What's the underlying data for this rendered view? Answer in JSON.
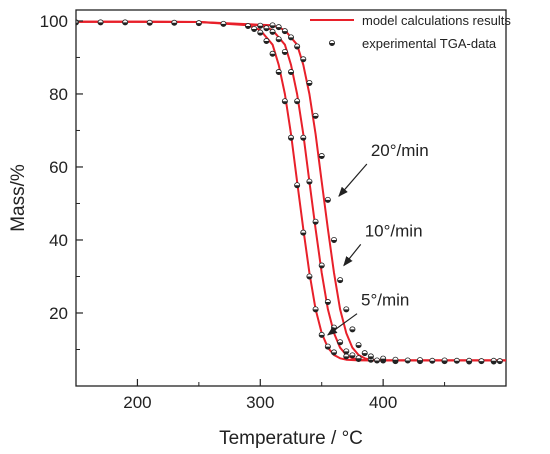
{
  "chart_data": {
    "type": "line",
    "title": "",
    "xlabel": "Temperature / °C",
    "ylabel": "Mass/%",
    "xlim": [
      150,
      500
    ],
    "ylim": [
      0,
      103
    ],
    "x_ticks": [
      {
        "value": 200,
        "label": "200"
      },
      {
        "value": 300,
        "label": "300"
      },
      {
        "value": 400,
        "label": "400"
      }
    ],
    "y_ticks": [
      {
        "value": 20,
        "label": "20"
      },
      {
        "value": 40,
        "label": "40"
      },
      {
        "value": 60,
        "label": "60"
      },
      {
        "value": 80,
        "label": "80"
      },
      {
        "value": 100,
        "label": "100"
      }
    ],
    "grid": false,
    "legend_position": "top-right",
    "legend": [
      {
        "label": "model calculations results",
        "kind": "line",
        "color": "#e8202a"
      },
      {
        "label": "experimental TGA-data",
        "kind": "marker",
        "color": "#222222"
      }
    ],
    "series": [
      {
        "rate": "5°/min",
        "model": {
          "x": [
            150,
            200,
            250,
            290,
            300,
            310,
            315,
            320,
            325,
            330,
            335,
            340,
            345,
            350,
            355,
            360,
            365,
            370,
            380,
            400,
            450,
            500
          ],
          "y": [
            99.8,
            99.8,
            99.7,
            98.8,
            97.5,
            93.5,
            88,
            80,
            69,
            56,
            43,
            31,
            21,
            14.5,
            10.5,
            8.5,
            7.6,
            7.2,
            7,
            7,
            7,
            7
          ]
        },
        "experimental": {
          "x": [
            150,
            170,
            190,
            210,
            230,
            250,
            270,
            290,
            295,
            300,
            305,
            310,
            315,
            320,
            325,
            330,
            335,
            340,
            345,
            350,
            355,
            360,
            370,
            380,
            395,
            410,
            430,
            450,
            470,
            490
          ],
          "y": [
            99.6,
            99.6,
            99.6,
            99.5,
            99.5,
            99.4,
            99.2,
            98.6,
            97.8,
            96.8,
            94.5,
            91,
            86,
            78,
            68,
            55,
            42,
            30,
            21,
            14,
            10.8,
            9.2,
            8.1,
            7.4,
            7,
            6.8,
            6.8,
            6.8,
            6.7,
            6.7
          ]
        }
      },
      {
        "rate": "10°/min",
        "model": {
          "x": [
            150,
            200,
            250,
            300,
            310,
            320,
            325,
            330,
            335,
            340,
            345,
            350,
            355,
            360,
            365,
            370,
            375,
            380,
            390,
            410,
            450,
            500
          ],
          "y": [
            99.8,
            99.8,
            99.7,
            98.8,
            97.5,
            93.5,
            88,
            80,
            69,
            56,
            43,
            31,
            21,
            14.5,
            10.5,
            8.5,
            7.6,
            7.2,
            7,
            7,
            7,
            7
          ]
        },
        "experimental": {
          "x": [
            300,
            305,
            310,
            315,
            320,
            325,
            330,
            335,
            340,
            345,
            350,
            355,
            360,
            365,
            370,
            375,
            380,
            390,
            400,
            420,
            440,
            460,
            480,
            495
          ],
          "y": [
            98.7,
            98,
            97,
            95,
            91.5,
            86,
            78,
            68,
            56,
            45,
            33,
            23,
            16,
            12,
            9.5,
            8.4,
            7.6,
            7.2,
            7,
            7,
            6.9,
            6.9,
            6.8,
            6.8
          ]
        }
      },
      {
        "rate": "20°/min",
        "model": {
          "x": [
            150,
            200,
            250,
            310,
            320,
            330,
            335,
            340,
            345,
            350,
            355,
            360,
            365,
            370,
            375,
            380,
            385,
            390,
            400,
            420,
            450,
            500
          ],
          "y": [
            99.8,
            99.8,
            99.7,
            98.8,
            97.5,
            93.5,
            88,
            80,
            69,
            56,
            43,
            31,
            21,
            14.5,
            10.5,
            8.5,
            7.6,
            7.2,
            7,
            7,
            7,
            7
          ]
        },
        "experimental": {
          "x": [
            310,
            315,
            320,
            325,
            330,
            335,
            340,
            345,
            350,
            355,
            360,
            365,
            370,
            375,
            380,
            385,
            390,
            400,
            410,
            430,
            450,
            470,
            490
          ],
          "y": [
            98.8,
            98.3,
            97.2,
            95.5,
            93,
            89.5,
            83,
            74,
            63,
            51,
            40,
            29,
            21,
            15.5,
            11.2,
            9,
            8.1,
            7.5,
            7.2,
            7.1,
            7,
            6.9,
            6.9
          ]
        }
      }
    ],
    "annotations": [
      {
        "text": "20°/min",
        "text_at": [
          390,
          63
        ],
        "arrow_to": [
          364,
          52
        ]
      },
      {
        "text": "10°/min",
        "text_at": [
          385,
          41
        ],
        "arrow_to": [
          368,
          33
        ]
      },
      {
        "text": "5°/min",
        "text_at": [
          382,
          22
        ],
        "arrow_to": [
          355,
          14
        ]
      }
    ]
  },
  "style": {
    "model_color": "#e8202a",
    "axis_color": "#222222"
  }
}
